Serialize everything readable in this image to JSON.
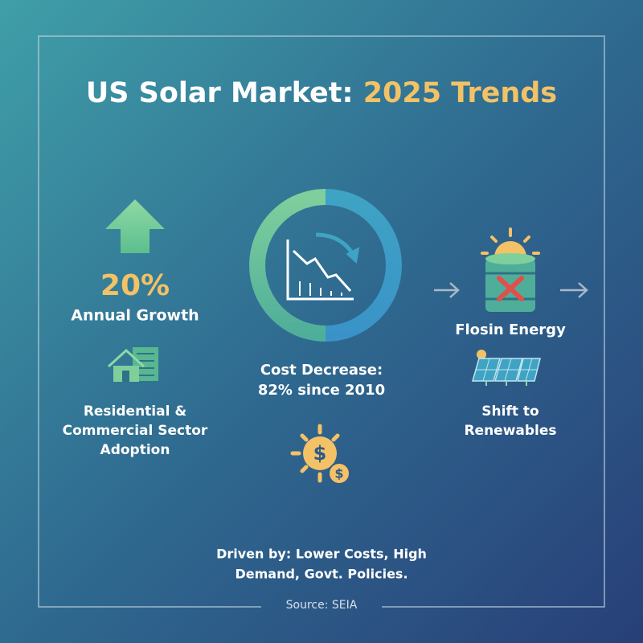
{
  "header": {
    "title_main": "US Solar Market:",
    "title_highlight": "2025 Trends"
  },
  "growth": {
    "stat": "20%",
    "label": "Annual Growth",
    "sector_lines": [
      "Residential &",
      "Commercial Sector",
      "Adoption"
    ]
  },
  "cost": {
    "lines": [
      "Cost Decrease:",
      "82% since 2010"
    ]
  },
  "energy": {
    "label": "Flosin Energy",
    "shift_lines": [
      "Shift to",
      "Renewables"
    ]
  },
  "footer": {
    "lines": [
      "Driven by: Lower Costs, High",
      "Demand, Govt. Policies."
    ],
    "source": "Source: SEIA"
  }
}
